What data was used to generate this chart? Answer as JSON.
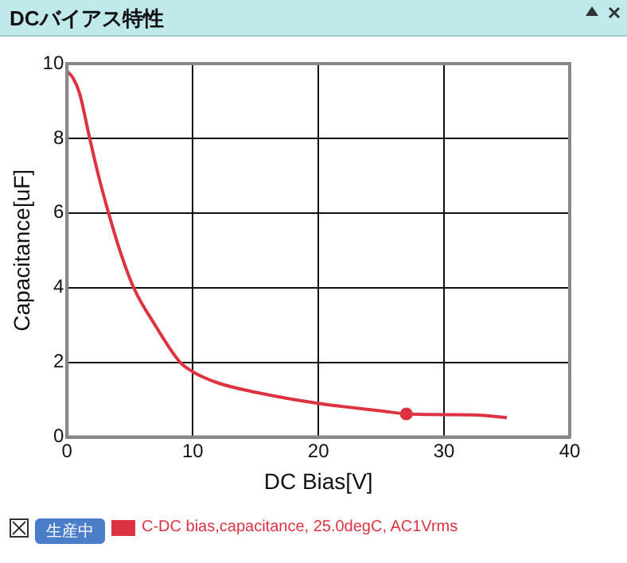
{
  "chart_data": {
    "type": "line",
    "title": "DCバイアス特性",
    "xlabel": "DC Bias[V]",
    "ylabel": "Capacitance[uF]",
    "xlim": [
      0,
      40
    ],
    "xticks": [
      0,
      10,
      20,
      30,
      40
    ],
    "ylim": [
      0,
      10
    ],
    "yticks": [
      0,
      2,
      4,
      6,
      8,
      10
    ],
    "grid": true,
    "legend": "bottom",
    "marker": "none",
    "line_style": "solid",
    "annotations": [
      "生産中"
    ],
    "series": [
      {
        "name": "C-DC bias,capacitance, 25.0degC, AC1Vrms",
        "color": "#dd3240",
        "x": [
          0,
          0.5,
          1,
          1.8,
          2.5,
          3.3,
          4.2,
          5.3,
          7,
          9,
          10,
          12,
          15,
          20,
          25,
          27,
          30,
          33,
          35
        ],
        "values": [
          9.8,
          9.6,
          9.2,
          8,
          7,
          6,
          5,
          4,
          3,
          2,
          1.75,
          1.45,
          1.2,
          0.9,
          0.7,
          0.62,
          0.6,
          0.58,
          0.52
        ]
      },
      {
        "type": "scatter",
        "marker": "circle",
        "color": "#dd3240",
        "x": [
          27
        ],
        "values": [
          0.62
        ]
      }
    ]
  }
}
